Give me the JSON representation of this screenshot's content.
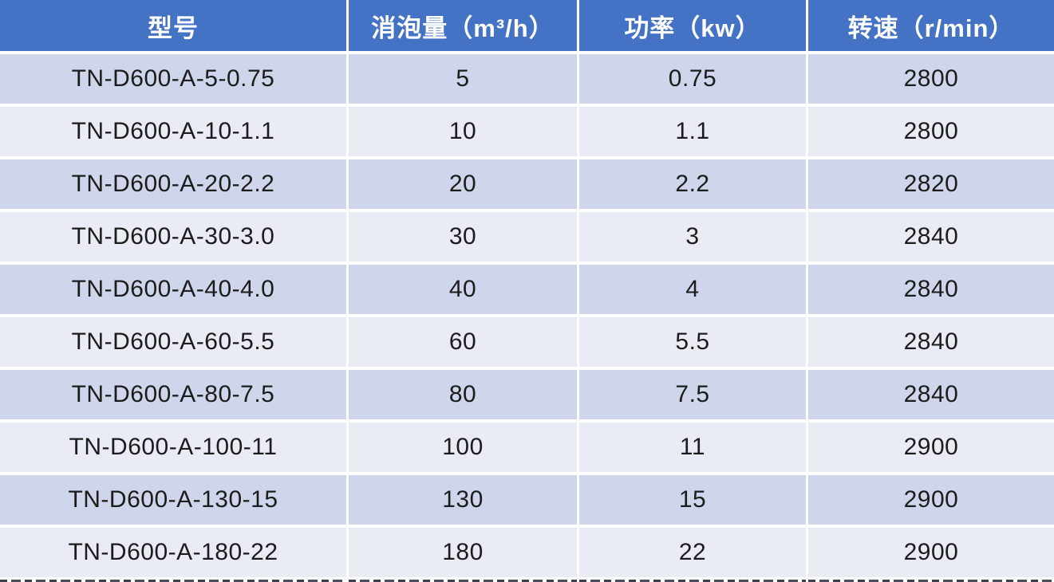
{
  "chart_data": {
    "type": "table",
    "title": "",
    "columns": [
      "型号",
      "消泡量（m³/h）",
      "功率（kw）",
      "转速（r/min）"
    ],
    "rows": [
      [
        "TN-D600-A-5-0.75",
        5,
        0.75,
        2800
      ],
      [
        "TN-D600-A-10-1.1",
        10,
        1.1,
        2800
      ],
      [
        "TN-D600-A-20-2.2",
        20,
        2.2,
        2820
      ],
      [
        "TN-D600-A-30-3.0",
        30,
        3,
        2840
      ],
      [
        "TN-D600-A-40-4.0",
        40,
        4,
        2840
      ],
      [
        "TN-D600-A-60-5.5",
        60,
        5.5,
        2840
      ],
      [
        "TN-D600-A-80-7.5",
        80,
        7.5,
        2840
      ],
      [
        "TN-D600-A-100-11",
        100,
        11,
        2900
      ],
      [
        "TN-D600-A-130-15",
        130,
        15,
        2900
      ],
      [
        "TN-D600-A-180-22",
        180,
        22,
        2900
      ]
    ],
    "layout": {
      "header_position": "top",
      "banded_rows": true,
      "band_order": "dark-first",
      "dividers": "3px white gaps between all cells",
      "bottom_edge": "next row cropped, only glyph tops visible"
    }
  },
  "colors": {
    "header_bg": "#4472C4",
    "header_text": "#FFFFFF",
    "band_dark": "#CFD5EA",
    "band_light": "#E9EBF5",
    "divider": "#FFFFFF",
    "body_text": "#1C1C1C",
    "cropped_glyphs": "#3C4050"
  }
}
